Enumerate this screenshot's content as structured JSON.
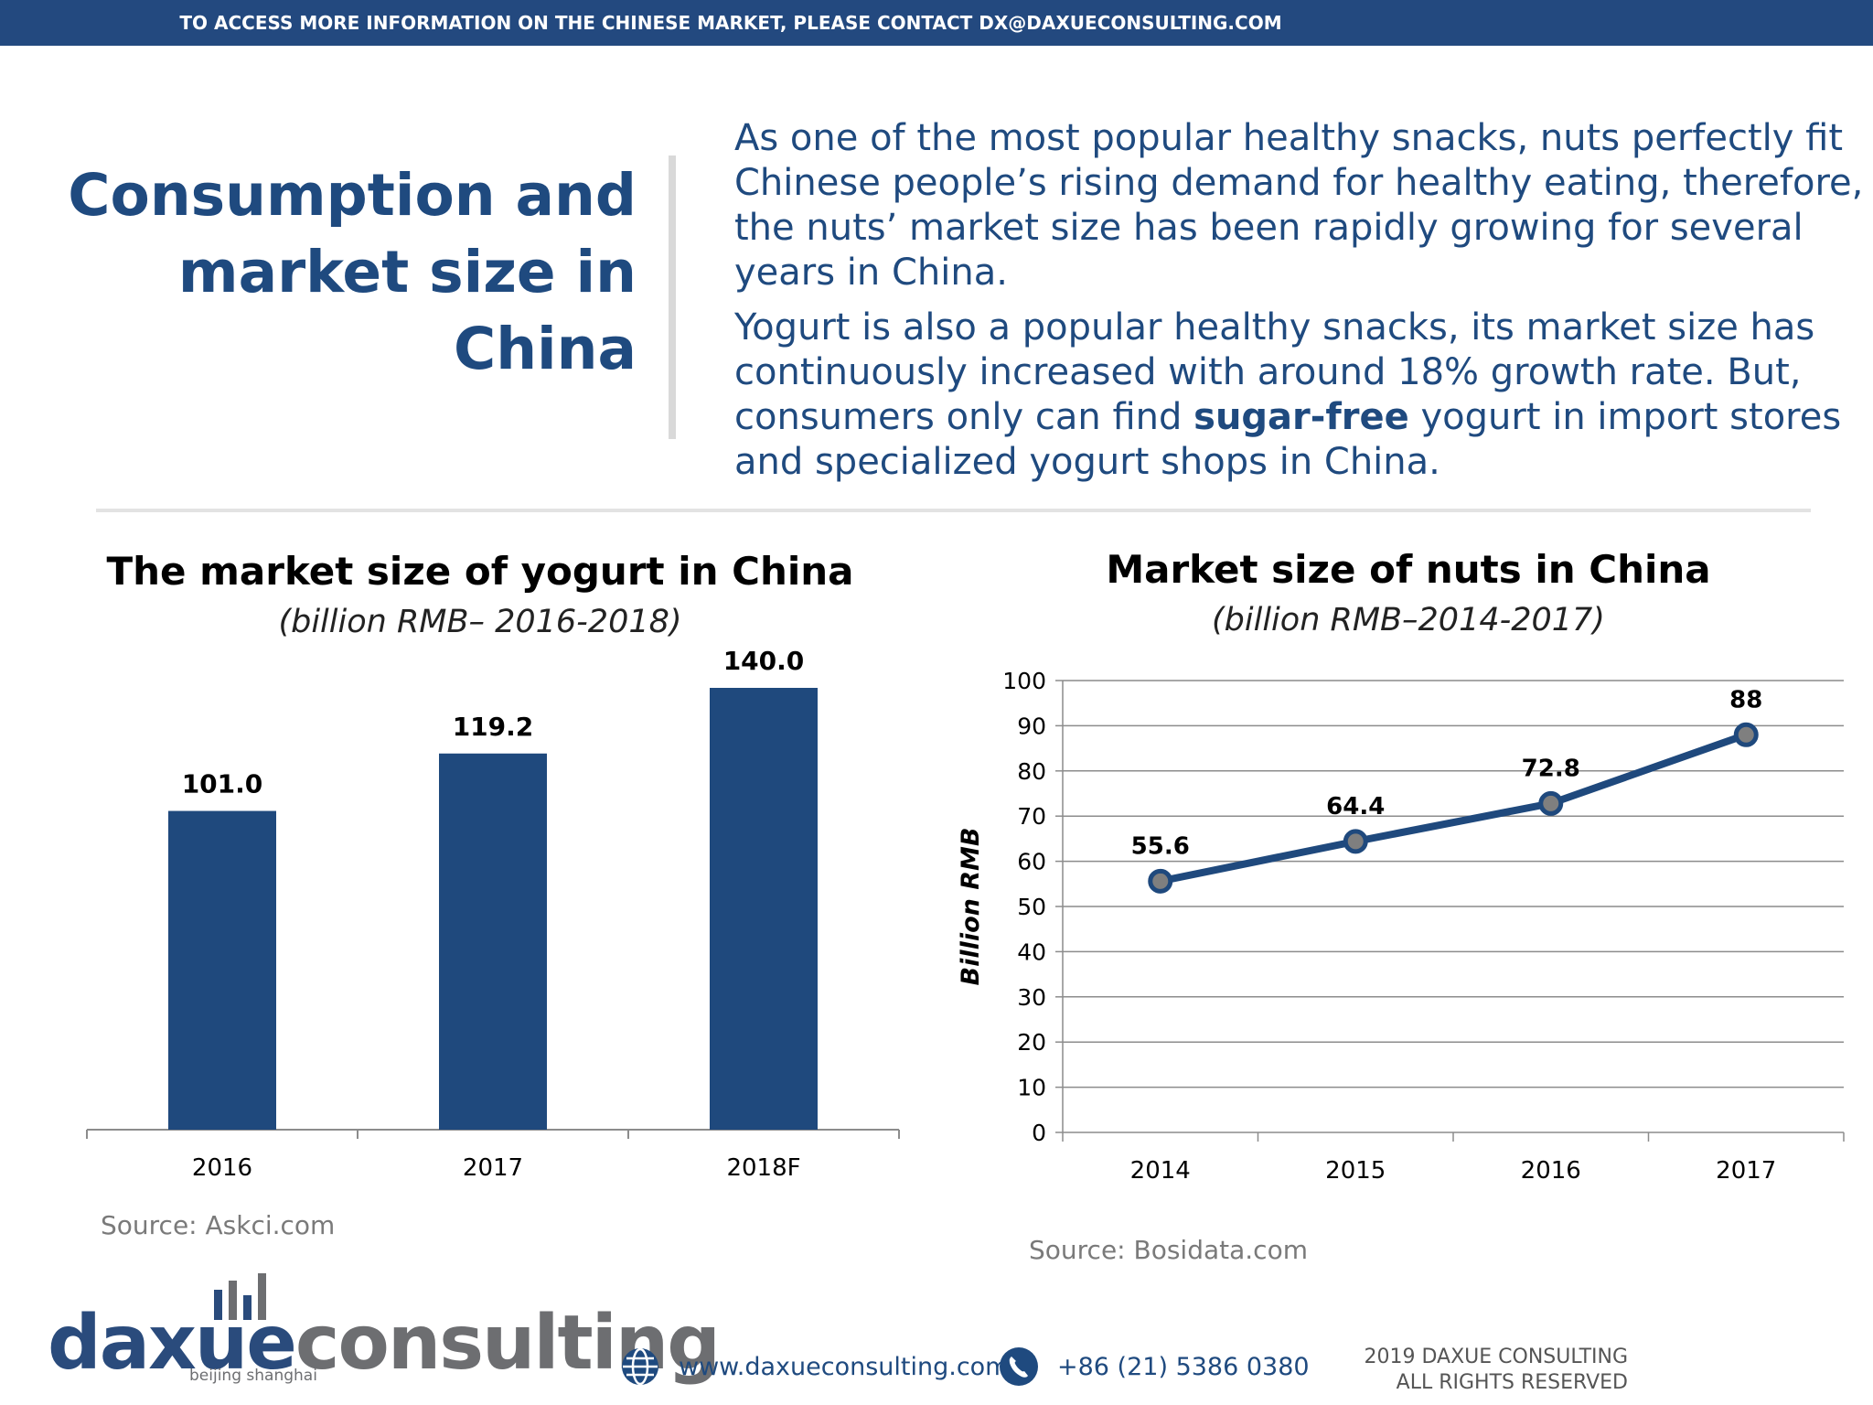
{
  "banner": "TO ACCESS MORE INFORMATION ON THE CHINESE MARKET, PLEASE CONTACT DX@DAXUECONSULTING.COM",
  "page_title": "Consumption and market size in China",
  "intro": {
    "p1": "As one of the most popular healthy snacks, nuts perfectly fit Chinese people’s rising demand for healthy eating, therefore, the nuts’ market size has been rapidly growing for several years in China.",
    "p2_before": "Yogurt is also a popular healthy snacks, its market size has continuously increased with around 18% growth rate. But, consumers only can find ",
    "p2_bold": "sugar-free",
    "p2_after": " yogurt in import stores and specialized yogurt shops in China."
  },
  "chart_data": [
    {
      "type": "bar",
      "title": "The market size of yogurt in China",
      "subtitle": "(billion RMB– 2016-2018)",
      "categories": [
        "2016",
        "2017",
        "2018F"
      ],
      "values": [
        101.0,
        119.2,
        140.0
      ],
      "labels": [
        "101.0",
        "119.2",
        "140.0"
      ],
      "ylim": [
        0,
        140
      ],
      "color": "#1f497d",
      "grid": false,
      "source": "Source: Askci.com"
    },
    {
      "type": "line",
      "title": "Market size of nuts in China",
      "subtitle": "(billion RMB–2014-2017)",
      "x": [
        "2014",
        "2015",
        "2016",
        "2017"
      ],
      "values": [
        55.6,
        64.4,
        72.8,
        88
      ],
      "labels": [
        "55.6",
        "64.4",
        "72.8",
        "88"
      ],
      "ylabel": "Billion RMB",
      "ylim": [
        0,
        100
      ],
      "yticks": [
        "0",
        "10",
        "20",
        "30",
        "40",
        "50",
        "60",
        "70",
        "80",
        "90",
        "100"
      ],
      "color": "#1f497d",
      "grid": true,
      "source": "Source: Bosidata.com"
    }
  ],
  "logo": {
    "part1": "daxue",
    "part2": "consulting",
    "tagline": "beijing shanghai"
  },
  "footer": {
    "website": "www.daxueconsulting.com",
    "phone": "+86 (21) 5386 0380",
    "rights_line1": "2019 DAXUE CONSULTING",
    "rights_line2": "ALL RIGHTS RESERVED"
  },
  "icons": {
    "website": "globe-icon",
    "phone": "phone-icon"
  }
}
